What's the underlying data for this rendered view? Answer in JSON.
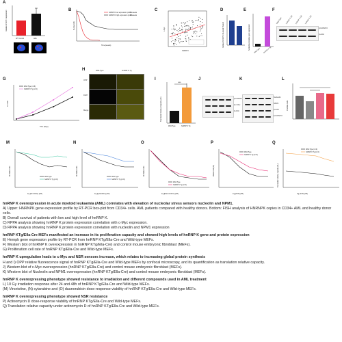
{
  "panels": {
    "A": {
      "label": "A",
      "ylabel": "Relative hnRNP K expression",
      "categories": [
        "WT Control",
        "AML"
      ],
      "values": [
        1.0,
        1.5
      ],
      "colors": [
        "#e8212a",
        "#111111"
      ]
    },
    "B": {
      "label": "B",
      "ylabel": "Survival (%)",
      "xlabel": "Time (weeks)",
      "legend": [
        "hnRNP K low expression profile",
        "hnRNP K high expression profile"
      ],
      "counts": [
        "71 weeks",
        "47 weeks"
      ]
    },
    "C": {
      "label": "C",
      "ylabel": "c-Myc",
      "xlabel": "hnRNP K"
    },
    "D": {
      "label": "D",
      "ylabel": "Relative hnRNP K/Nucleolin  Tubulin",
      "values": [
        0.8,
        1.0
      ],
      "colors": [
        "#1f3f8f",
        "#1f3f8f"
      ]
    },
    "E": {
      "label": "E",
      "ylabel": "Normalized relative gene expression",
      "categories": [
        "Wild-Type",
        "hnRNP K Tg"
      ],
      "values": [
        1,
        14
      ],
      "colors": [
        "#111111",
        "#c44bdb"
      ]
    },
    "F": {
      "label": "F",
      "rows": [
        "β-hnRNP K",
        "β-Actin"
      ],
      "lanes": [
        "Wild-Type",
        "hnRNP K OE",
        "hnRNP K OE",
        "hnRNP K OE"
      ]
    },
    "G": {
      "label": "G",
      "ylabel": "N° Cells",
      "xlabel": "Time (days)",
      "legend": [
        "Wild-Type (n=6)",
        "hnRNP K Tg (n=6)"
      ]
    },
    "H": {
      "label": "H",
      "cols": [
        "Wild-Type",
        "hnRNP K Tg"
      ],
      "rows": [
        "OPP",
        "DAPI",
        "Merge"
      ]
    },
    "I": {
      "label": "I",
      "ylabel": "Translation Relative Capacity (AU)",
      "categories": [
        "Wild-Type",
        "hnRNP K Tg"
      ],
      "values": [
        370,
        1080
      ],
      "sig": "***",
      "colors": [
        "#111111",
        "#f39a3a"
      ]
    },
    "J": {
      "label": "J",
      "rows": [
        "β-hnRNP K",
        "β-c-Myc",
        "β-Actin"
      ]
    },
    "K": {
      "label": "K",
      "rows": [
        "Nucleolin",
        "NPM1",
        "β-Actin",
        "β-hnRNP K"
      ]
    },
    "L": {
      "label": "L",
      "ylabel": "% Viable Cells",
      "values": [
        72,
        58,
        80,
        78
      ],
      "colors": [
        "#666666",
        "#888888",
        "#e86a8a",
        "#e83a3a"
      ]
    },
    "M": {
      "label": "M",
      "ylabel": "% Viable Cells",
      "xlabel": "log [Vincristine] (nM)",
      "legend": [
        "Wild-Type",
        "hnRNP K Tg (n=6)"
      ]
    },
    "N": {
      "label": "N",
      "ylabel": "% Viable Cells",
      "xlabel": "log [Cytarabine] (nM)",
      "legend": [
        "Wild-Type",
        "hnRNP K Tg (n=6)"
      ]
    },
    "O": {
      "label": "O",
      "ylabel": "% Viable Cells",
      "xlabel": "log [Daunorubicin] (nM)",
      "legend": [
        "Wild-Type",
        "hnRNP K Tg (n=6)"
      ]
    },
    "P": {
      "label": "P",
      "ylabel": "Viable Cells (%)",
      "xlabel": "log [ActD] (nM)",
      "legend": [
        "Wild-Type",
        "hnRNP K Tg (n=6)"
      ]
    },
    "Q": {
      "label": "Q",
      "ylabel": "Translation relative capacity (AU)",
      "xlabel": "log [ActD] (nM)",
      "legend": [
        "Wild-Type (n=4)",
        "hnRNP K Tg (n=4)"
      ]
    }
  },
  "caption": {
    "s1_title": "hnRNP K overexpression in acute myeloid leukaemia (AML) correlates with elevation of nucleolar stress sensors nucleolin and NPM1.",
    "s1_A": "A) Upper: HNRNPK gene expression profile by RT-PCR box-plot from CD34+ cells. AML patients compared with healthy donors. Bottom: FISH analysis of HNRNPK copies in CD34+ AML and healthy donor cells.",
    "s1_B": "B) Overall survival of patients with low and high level of hnRNP K.",
    "s1_C": "C) RPPA analysis showing hnRNP K protein expression correlation with c-Myc expression.",
    "s1_D": "D) RPPA analysis showing hnRNP K protein expression correlation with nucleolin and NPM1 expression",
    "s2_title": "hnRNP KTg/Ella-Cre MEFs manifested an increase in its proliferation capacity and showed high levels of hnRNP K gene and protein expression",
    "s2_E": "E) Hnrnpk gene expression profile by RT-PCR from hnRNP KTg/Ella-Cre and Wild-type MEFs.",
    "s2_F": "F) Western blot of hnRNP K overexpression in hnRNP KTg/Ella-Cre) and control mouse embryonic fibroblast (MEFs).",
    "s2_G": "G) Proliferation cell rate of hnRNP KTg/Ella-Cre and Wild-type MEFs.",
    "s3_title": "hnRNP K upregulation leads to c-Myc and NSR sensors increase, which relates to increasing global protein synthesis",
    "s3_HI": "H and I) OPP relative fluorescence signal of hnRNP KTg/Ella-Cre and Wild-type MEFs by confocal microscopy, and its quantification as translation relative capacity.",
    "s3_J": "J) Western blot of c-Myc overexpression (hnRNP KTg/Ella-Cre) and control mouse embryonic fibroblast (MEFs).",
    "s3_K": "K) Western blot of Nucleolin and NPM1 overexpression (hnRNP KTg/Ella-Cre) and control mouse embryonic fibroblast (MEFs).",
    "s4_title": "hnRNP K overexpressing phenotype showed resistance to irradiation and different compounds used in AML treatment",
    "s4_L": "L) 10 Gy irradiation response after 24 and 48h of hnRNP KTg/Ella-Cre and Wild-type MEFs.",
    "s4_MNO": "(M) Vincristine, (N) cytarabine and (O) daunorubicin dose-response viability of hnRNP KTg/Ella-Cre and Wild-type MEFs.",
    "s5_title": "hnRNP K overexpressing phenotype showed NSR resistance",
    "s5_P": "P) Actinomycin D dose-response viability of hnRNP KTg/Ella-Cre and Wild-type MEFs.",
    "s5_Q": "Q) Translation relative capacity under actinomycin D of hnRNP KTg/Ella-Cre and Wild-type MEFs."
  }
}
